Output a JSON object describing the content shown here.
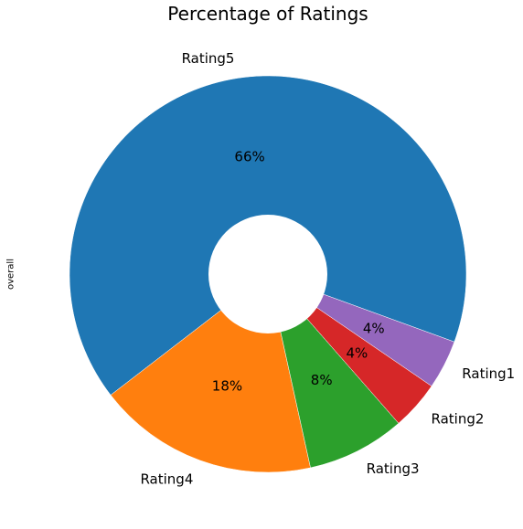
{
  "chart_data": {
    "type": "pie",
    "title": "Percentage of Ratings",
    "ylabel": "overall",
    "donut": true,
    "start_angle_deg": -20,
    "direction": "counterclockwise",
    "slices": [
      {
        "label": "Rating5",
        "value": 66,
        "pct_label": "66%",
        "color": "#1f77b4"
      },
      {
        "label": "Rating4",
        "value": 18,
        "pct_label": "18%",
        "color": "#ff7f0e"
      },
      {
        "label": "Rating3",
        "value": 8,
        "pct_label": "8%",
        "color": "#2ca02c"
      },
      {
        "label": "Rating2",
        "value": 4,
        "pct_label": "4%",
        "color": "#d62728"
      },
      {
        "label": "Rating1",
        "value": 4,
        "pct_label": "4%",
        "color": "#9467bd"
      }
    ]
  }
}
